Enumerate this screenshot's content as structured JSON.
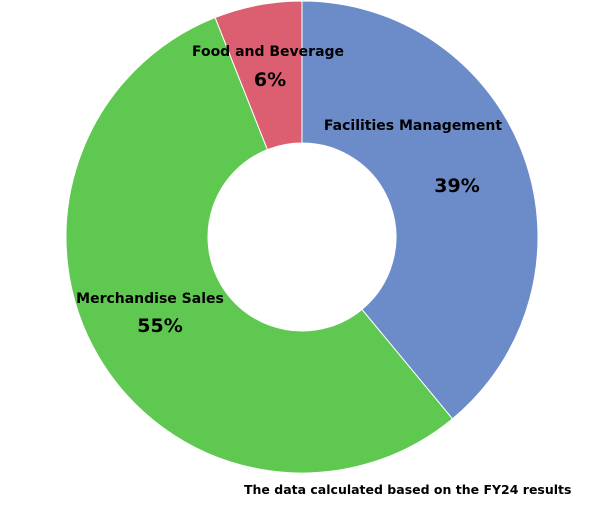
{
  "chart_data": {
    "type": "pie",
    "variant": "donut",
    "categories": [
      "Facilities Management",
      "Merchandise Sales",
      "Food and Beverage"
    ],
    "values": [
      39,
      55,
      6
    ],
    "value_labels": [
      "39%",
      "55%",
      "6%"
    ],
    "colors": [
      "#6b8cc9",
      "#5fc851",
      "#db5f70"
    ],
    "legend": "none"
  },
  "footnote": "The data calculated based on the FY24 results"
}
